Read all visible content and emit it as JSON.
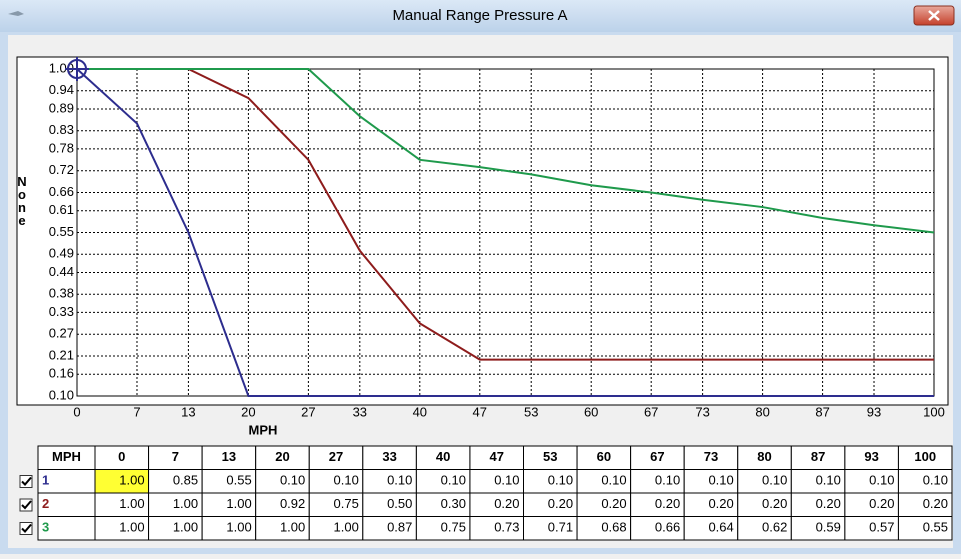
{
  "window": {
    "title": "Manual Range Pressure A"
  },
  "chart_data": {
    "type": "line",
    "x_label": "MPH",
    "y_label": "None",
    "x": [
      0,
      7,
      13,
      20,
      27,
      33,
      40,
      47,
      53,
      60,
      67,
      73,
      80,
      87,
      93,
      100
    ],
    "xlim": [
      0,
      100
    ],
    "xticks": [
      0,
      7,
      13,
      20,
      27,
      33,
      40,
      47,
      53,
      60,
      67,
      73,
      80,
      87,
      93,
      100
    ],
    "ylim": [
      0.1,
      1
    ],
    "yticks": [
      {
        "value": 0.1,
        "label": "0.10"
      },
      {
        "value": 0.16,
        "label": "0.16"
      },
      {
        "value": 0.21,
        "label": "0.21"
      },
      {
        "value": 0.27,
        "label": "0.27"
      },
      {
        "value": 0.33,
        "label": "0.33"
      },
      {
        "value": 0.38,
        "label": "0.38"
      },
      {
        "value": 0.44,
        "label": "0.44"
      },
      {
        "value": 0.49,
        "label": "0.49"
      },
      {
        "value": 0.55,
        "label": "0.55"
      },
      {
        "value": 0.61,
        "label": "0.61"
      },
      {
        "value": 0.66,
        "label": "0.66"
      },
      {
        "value": 0.72,
        "label": "0.72"
      },
      {
        "value": 0.78,
        "label": "0.78"
      },
      {
        "value": 0.83,
        "label": "0.83"
      },
      {
        "value": 0.89,
        "label": "0.89"
      },
      {
        "value": 0.94,
        "label": "0.94"
      },
      {
        "value": 1,
        "label": "1.00"
      }
    ],
    "grid": true,
    "selected": {
      "series": 0,
      "index": 0
    },
    "series": [
      {
        "name": "1",
        "color": "#2d2d8e",
        "checked": true,
        "values": [
          1,
          0.85,
          0.55,
          0.1,
          0.1,
          0.1,
          0.1,
          0.1,
          0.1,
          0.1,
          0.1,
          0.1,
          0.1,
          0.1,
          0.1,
          0.1
        ],
        "value_labels": [
          "1.00",
          "0.85",
          "0.55",
          "0.10",
          "0.10",
          "0.10",
          "0.10",
          "0.10",
          "0.10",
          "0.10",
          "0.10",
          "0.10",
          "0.10",
          "0.10",
          "0.10",
          "0.10"
        ]
      },
      {
        "name": "2",
        "color": "#8e1c1c",
        "checked": true,
        "values": [
          1,
          1,
          1,
          0.92,
          0.75,
          0.5,
          0.3,
          0.2,
          0.2,
          0.2,
          0.2,
          0.2,
          0.2,
          0.2,
          0.2,
          0.2
        ],
        "value_labels": [
          "1.00",
          "1.00",
          "1.00",
          "0.92",
          "0.75",
          "0.50",
          "0.30",
          "0.20",
          "0.20",
          "0.20",
          "0.20",
          "0.20",
          "0.20",
          "0.20",
          "0.20",
          "0.20"
        ]
      },
      {
        "name": "3",
        "color": "#1f9a4c",
        "checked": true,
        "values": [
          1,
          1,
          1,
          1,
          1,
          0.87,
          0.75,
          0.73,
          0.71,
          0.68,
          0.66,
          0.64,
          0.62,
          0.59,
          0.57,
          0.55
        ],
        "value_labels": [
          "1.00",
          "1.00",
          "1.00",
          "1.00",
          "1.00",
          "0.87",
          "0.75",
          "0.73",
          "0.71",
          "0.68",
          "0.66",
          "0.64",
          "0.62",
          "0.59",
          "0.57",
          "0.55"
        ]
      }
    ]
  },
  "table": {
    "header": "MPH"
  }
}
